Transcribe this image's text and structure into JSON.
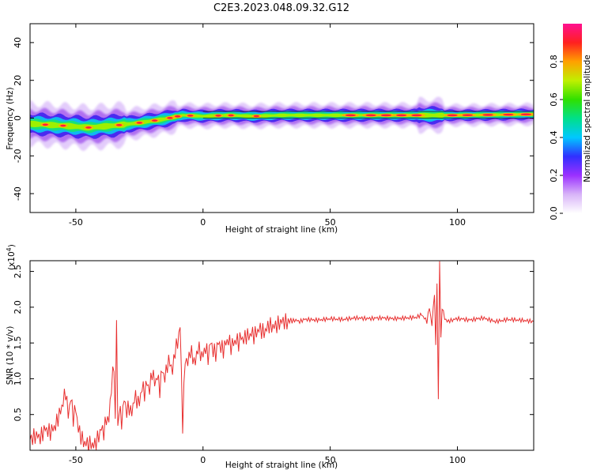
{
  "title": "C2E3.2023.048.09.32.G12",
  "chart_data": [
    {
      "type": "heatmap",
      "xlabel": "Height of straight line (km)",
      "ylabel": "Frequency (Hz)",
      "xlim": [
        -68,
        130
      ],
      "ylim": [
        -50,
        50
      ],
      "x_ticks": [
        -50,
        0,
        50,
        100
      ],
      "x_tick_labels": [
        "-50",
        "0",
        "50",
        "100"
      ],
      "y_ticks": [
        -40,
        -20,
        0,
        20,
        40
      ],
      "y_tick_labels": [
        "-40",
        "-20",
        "0",
        "20",
        "40"
      ],
      "colorbar": {
        "label": "Normalized spectral amplitude",
        "range": [
          0,
          1
        ],
        "ticks": [
          0.0,
          0.2,
          0.4,
          0.6,
          0.8
        ],
        "tick_labels": [
          "0.0",
          "0.2",
          "0.4",
          "0.6",
          "0.8"
        ],
        "colors": [
          "#ffffff",
          "#d8b4f8",
          "#9b30ff",
          "#3030ff",
          "#00c8ff",
          "#00e08a",
          "#30e000",
          "#c0f000",
          "#ffa000",
          "#ff2020",
          "#ff1090"
        ]
      },
      "ridge": [
        {
          "x": -68,
          "f": -3.0
        },
        {
          "x": -55,
          "f": -4.0
        },
        {
          "x": -45,
          "f": -5.0
        },
        {
          "x": -35,
          "f": -4.0
        },
        {
          "x": -25,
          "f": -2.5
        },
        {
          "x": -15,
          "f": -0.5
        },
        {
          "x": -8,
          "f": 1.5
        },
        {
          "x": 0,
          "f": 1.0
        },
        {
          "x": 10,
          "f": 1.5
        },
        {
          "x": 20,
          "f": 1.0
        },
        {
          "x": 30,
          "f": 1.5
        },
        {
          "x": 50,
          "f": 1.5
        },
        {
          "x": 70,
          "f": 1.5
        },
        {
          "x": 90,
          "f": 1.5
        },
        {
          "x": 100,
          "f": 1.5
        },
        {
          "x": 130,
          "f": 2.0
        }
      ]
    },
    {
      "type": "line",
      "xlabel": "Height of straight line (km)",
      "ylabel": "SNR (10 * v/v)",
      "y_multiplier_label": "(x10",
      "y_multiplier_exp": "4",
      "y_multiplier_close": ")",
      "xlim": [
        -68,
        130
      ],
      "ylim": [
        0,
        2.65
      ],
      "x_ticks": [
        -50,
        0,
        50,
        100
      ],
      "x_tick_labels": [
        "-50",
        "0",
        "50",
        "100"
      ],
      "y_ticks": [
        0.5,
        1.0,
        1.5,
        2.0,
        2.5
      ],
      "y_tick_labels": [
        "0.5",
        "1.0",
        "1.5",
        "2.0",
        "2.5"
      ],
      "line_color": "#e83030",
      "series": [
        {
          "x": [
            -68,
            -66,
            -64,
            -62,
            -60,
            -58,
            -56,
            -54,
            -53,
            -52,
            -51,
            -50,
            -49,
            -48,
            -47,
            -46,
            -45,
            -44,
            -43,
            -42,
            -41,
            -40,
            -39,
            -38,
            -37,
            -36,
            -35,
            -34.5,
            -34,
            -33.5,
            -33,
            -32,
            -31,
            -30,
            -29,
            -28,
            -27,
            -26,
            -25,
            -24,
            -23,
            -22,
            -21,
            -20,
            -19,
            -18,
            -17,
            -16,
            -15,
            -14,
            -13,
            -12,
            -11,
            -10,
            -9,
            -8,
            -7,
            -6,
            -5,
            -4,
            -3,
            -2,
            -1,
            0,
            1,
            2,
            3,
            4,
            5,
            6,
            7,
            8,
            9,
            10,
            11,
            12,
            13,
            14,
            15,
            16,
            17,
            18,
            19,
            20,
            22,
            24,
            26,
            28,
            30,
            32,
            34,
            36,
            38,
            40,
            45,
            50,
            55,
            60,
            65,
            70,
            75,
            80,
            84,
            86,
            88,
            89,
            90,
            91,
            91.5,
            92,
            92.5,
            93,
            93.5,
            94,
            95,
            96,
            98,
            100,
            105,
            110,
            115,
            120,
            125,
            130
          ],
          "y": [
            0.15,
            0.2,
            0.18,
            0.3,
            0.25,
            0.35,
            0.55,
            0.82,
            0.5,
            0.75,
            0.45,
            0.6,
            0.3,
            0.2,
            0.12,
            0.1,
            0.08,
            0.1,
            0.06,
            0.12,
            0.2,
            0.3,
            0.25,
            0.45,
            0.4,
            0.9,
            1.2,
            0.5,
            1.82,
            0.4,
            0.6,
            0.4,
            0.7,
            0.55,
            0.6,
            0.5,
            0.75,
            0.7,
            0.65,
            0.9,
            0.8,
            0.95,
            0.85,
            1.1,
            0.95,
            1.05,
            0.85,
            1.15,
            1.0,
            1.2,
            1.25,
            1.1,
            1.4,
            1.5,
            1.75,
            0.35,
            1.3,
            1.2,
            1.4,
            1.3,
            1.2,
            1.45,
            1.35,
            1.3,
            1.45,
            1.3,
            1.5,
            1.4,
            1.35,
            1.5,
            1.45,
            1.4,
            1.5,
            1.55,
            1.45,
            1.5,
            1.55,
            1.5,
            1.6,
            1.55,
            1.6,
            1.6,
            1.65,
            1.6,
            1.7,
            1.65,
            1.75,
            1.72,
            1.78,
            1.8,
            1.78,
            1.82,
            1.8,
            1.83,
            1.82,
            1.84,
            1.83,
            1.85,
            1.84,
            1.85,
            1.84,
            1.85,
            1.86,
            1.9,
            1.8,
            2.0,
            1.75,
            2.2,
            1.5,
            2.35,
            0.72,
            2.65,
            1.6,
            2.0,
            1.85,
            1.8,
            1.82,
            1.84,
            1.82,
            1.85,
            1.8,
            1.83,
            1.82,
            1.8
          ]
        }
      ]
    }
  ]
}
